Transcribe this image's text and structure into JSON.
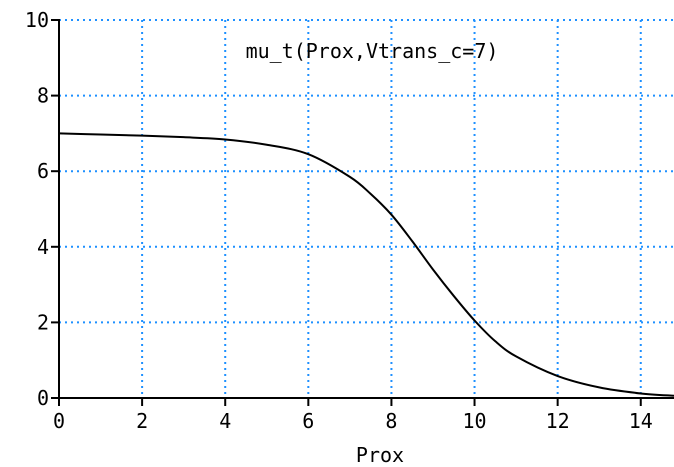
{
  "chart_data": {
    "type": "line",
    "title": "mu_t(Prox,Vtrans_c=7)",
    "xlabel": "Prox",
    "ylabel": "",
    "xlim": [
      0,
      14.8
    ],
    "ylim": [
      0,
      10
    ],
    "x_ticks": [
      0,
      2,
      4,
      6,
      8,
      10,
      12,
      14
    ],
    "y_ticks": [
      0,
      2,
      4,
      6,
      8,
      10
    ],
    "x_tick_labels": [
      "0",
      "2",
      "4",
      "6",
      "8",
      "10",
      "12",
      "14"
    ],
    "y_tick_labels": [
      "0",
      "2",
      "4",
      "6",
      "8",
      "10"
    ],
    "grid": true,
    "grid_style": "dotted",
    "colors": {
      "grid": "#1e90ff",
      "line": "#000000",
      "axis": "#000000"
    },
    "series": [
      {
        "x": [
          0,
          1,
          2,
          3,
          4,
          5,
          6,
          7,
          7.5,
          8,
          8.5,
          9,
          9.5,
          10,
          10.5,
          11,
          12,
          13,
          14,
          14.8
        ],
        "y": [
          7.0,
          6.97,
          6.94,
          6.9,
          6.84,
          6.7,
          6.45,
          5.85,
          5.4,
          4.85,
          4.15,
          3.4,
          2.7,
          2.05,
          1.5,
          1.1,
          0.58,
          0.28,
          0.12,
          0.06
        ]
      }
    ]
  }
}
